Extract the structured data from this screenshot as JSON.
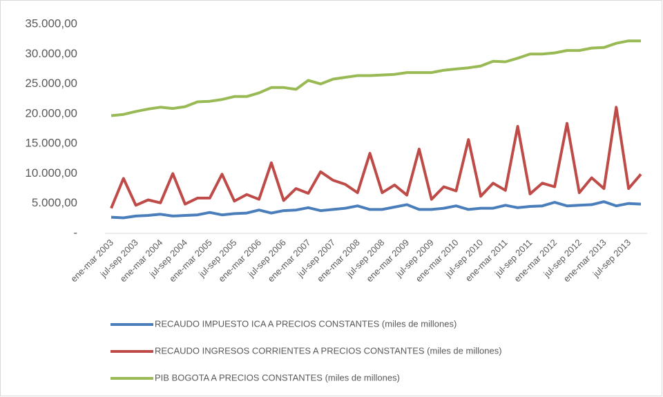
{
  "chart_data": {
    "type": "line",
    "categories": [
      "ene-mar 2003",
      null,
      "jul-sep 2003",
      null,
      "ene-mar 2004",
      null,
      "jul-sep 2004",
      null,
      "ene-mar 2005",
      null,
      "jul-sep 2005",
      null,
      "ene-mar 2006",
      null,
      "jul-sep 2006",
      null,
      "ene-mar 2007",
      null,
      "jul-sep 2007",
      null,
      "ene-mar 2008",
      null,
      "jul-sep 2008",
      null,
      "ene-mar 2009",
      null,
      "jul-sep 2009",
      null,
      "ene-mar 2010",
      null,
      "jul-sep 2010",
      null,
      "ene-mar 2011",
      null,
      "jul-sep 2011",
      null,
      "ene-mar 2012",
      null,
      "jul-sep 2012",
      null,
      "ene-mar 2013",
      null,
      "jul-sep 2013",
      null
    ],
    "series": [
      {
        "name": "RECAUDO IMPUESTO ICA A PRECIOS CONSTANTES (miles de millones)",
        "color": "#4a7ebb",
        "values": [
          2700,
          2600,
          2900,
          3000,
          3200,
          2900,
          3000,
          3100,
          3500,
          3100,
          3300,
          3400,
          3900,
          3400,
          3800,
          3900,
          4300,
          3800,
          4000,
          4200,
          4600,
          4000,
          4000,
          4400,
          4800,
          4000,
          4000,
          4200,
          4600,
          4000,
          4200,
          4200,
          4700,
          4300,
          4500,
          4600,
          5200,
          4600,
          4700,
          4800,
          5300,
          4600,
          5000,
          4900
        ]
      },
      {
        "name": "RECAUDO INGRESOS CORRIENTES A PRECIOS CONSTANTES (miles de millones)",
        "color": "#be4b48",
        "values": [
          4200,
          9200,
          4700,
          5600,
          5100,
          10000,
          4900,
          5900,
          5900,
          9900,
          5400,
          6500,
          5700,
          11800,
          5500,
          7500,
          6700,
          10300,
          8900,
          8200,
          6800,
          13400,
          6800,
          8100,
          6400,
          14100,
          5700,
          7800,
          7100,
          15700,
          6200,
          8400,
          7200,
          17900,
          6600,
          8400,
          7800,
          18400,
          6800,
          9300,
          7500,
          21100,
          7500,
          9900
        ]
      },
      {
        "name": "PIB BOGOTA A PRECIOS CONSTANTES  (miles de millones)",
        "color": "#98b954",
        "values": [
          19700,
          19900,
          20400,
          20800,
          21100,
          20900,
          21200,
          22000,
          22100,
          22400,
          22900,
          22900,
          23500,
          24400,
          24400,
          24100,
          25600,
          25000,
          25800,
          26100,
          26400,
          26400,
          26500,
          26600,
          26900,
          26900,
          26900,
          27300,
          27500,
          27700,
          28000,
          28800,
          28700,
          29300,
          30000,
          30000,
          30200,
          30600,
          30600,
          31000,
          31100,
          31800,
          32200,
          32200
        ]
      }
    ],
    "ylim": [
      0,
      35000
    ],
    "yticks": [
      {
        "value": 0,
        "label": "-"
      },
      {
        "value": 5000,
        "label": "5.000,00"
      },
      {
        "value": 10000,
        "label": "10.000,00"
      },
      {
        "value": 15000,
        "label": "15.000,00"
      },
      {
        "value": 20000,
        "label": "20.000,00"
      },
      {
        "value": 25000,
        "label": "25.000,00"
      },
      {
        "value": 30000,
        "label": "30.000,00"
      },
      {
        "value": 35000,
        "label": "35.000,00"
      }
    ],
    "legend": "bottom"
  }
}
